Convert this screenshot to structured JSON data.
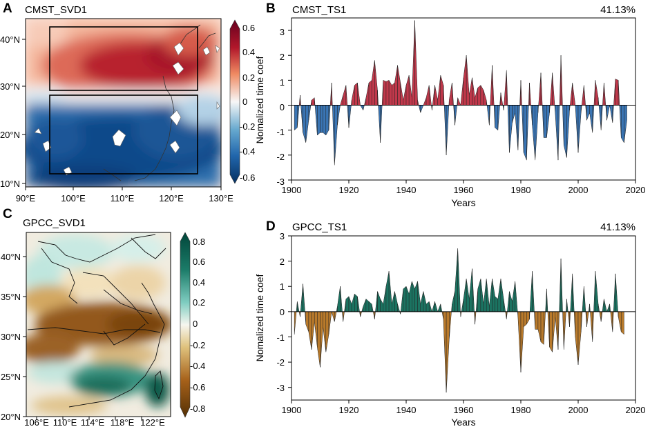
{
  "chart_data": [
    {
      "panel": "A",
      "type": "heatmap",
      "title": "CMST_SVD1",
      "x_ticks": [
        "90°E",
        "100°E",
        "110°E",
        "120°E",
        "130°E"
      ],
      "y_ticks": [
        "10°N",
        "20°N",
        "30°N",
        "40°N"
      ],
      "colorbar_ticks": [
        "0.6",
        "0.4",
        "0.2",
        "0",
        "-0.2",
        "-0.4",
        "-0.6"
      ],
      "colorbar_range": [
        -0.6,
        0.6
      ],
      "colors": {
        "positive": "#a3182a",
        "negative": "#134d8f",
        "zero": "#f5f5f5"
      }
    },
    {
      "panel": "B",
      "type": "area",
      "title": "CMST_TS1",
      "variance": "41.13%",
      "xlabel": "Years",
      "ylabel": "Nomalized time coef",
      "xlim": [
        1900,
        2020
      ],
      "ylim": [
        -3,
        3.5
      ],
      "x_ticks": [
        "1900",
        "1920",
        "1940",
        "1960",
        "1980",
        "2000",
        "2020"
      ],
      "y_ticks": [
        "3",
        "2",
        "1",
        "0",
        "-1",
        "-2",
        "-3"
      ],
      "x_start": 1901,
      "values": [
        -1.0,
        -0.9,
        0.4,
        -1.1,
        -1.5,
        -0.6,
        0.2,
        0.3,
        -1.2,
        -1.1,
        -1.1,
        -1.2,
        -1.0,
        0.9,
        -2.4,
        -0.8,
        0.0,
        0.4,
        0.8,
        -0.9,
        0.2,
        0.8,
        0.9,
        0.0,
        -0.2,
        0.3,
        0.9,
        1.0,
        1.8,
        0.6,
        -1.5,
        1.0,
        0.95,
        1.0,
        0.8,
        0.9,
        1.6,
        0.9,
        0.2,
        0.8,
        1.2,
        0.3,
        3.4,
        0.2,
        -0.3,
        0.0,
        0.3,
        0.8,
        -0.2,
        0.8,
        0.2,
        1.2,
        0.8,
        -2.0,
        0.2,
        0.9,
        -0.8,
        0.3,
        0.0,
        1.1,
        2.0,
        0.4,
        1.1,
        0.3,
        0.7,
        0.8,
        0.6,
        0.2,
        -0.8,
        1.6,
        -0.9,
        -1.0,
        0.5,
        -0.2,
        1.4,
        -1.9,
        -0.7,
        -0.3,
        -1.8,
        1.0,
        -1.9,
        -2.2,
        0.9,
        -0.8,
        -2.2,
        -0.3,
        1.3,
        -1.3,
        -1.3,
        -0.3,
        1.3,
        -0.3,
        -2.2,
        2.0,
        -1.6,
        -2.1,
        -0.2,
        0.9,
        0.0,
        -1.9,
        -0.3,
        0.8,
        -0.6,
        -0.3,
        -1.1,
        1.0,
        0.3,
        -1.0,
        0.9,
        -0.6,
        0.0,
        -0.7,
        1.05,
        1.0,
        -1.3,
        -1.5,
        -0.6
      ],
      "colors": {
        "positive": "#c1384b",
        "negative": "#3a75b4"
      }
    },
    {
      "panel": "C",
      "type": "heatmap",
      "title": "GPCC_SVD1",
      "x_ticks": [
        "106°E",
        "110°E",
        "114°E",
        "118°E",
        "122°E"
      ],
      "y_ticks": [
        "20°N",
        "25°N",
        "30°N",
        "35°N",
        "40°N"
      ],
      "colorbar_ticks": [
        "0.8",
        "0.6",
        "0.4",
        "0.2",
        "0",
        "-0.2",
        "-0.4",
        "-0.6",
        "-0.8"
      ],
      "colorbar_range": [
        -0.8,
        0.8
      ],
      "colors": {
        "positive": "#0c5e4c",
        "negative": "#7a4a0c",
        "zero": "#f7f7f0"
      }
    },
    {
      "panel": "D",
      "type": "area",
      "title": "GPCC_TS1",
      "variance": "41.13%",
      "xlabel": "Years",
      "ylabel": "Nomalized time coef",
      "xlim": [
        1900,
        2020
      ],
      "ylim": [
        -3.5,
        3
      ],
      "x_ticks": [
        "1900",
        "1920",
        "1940",
        "1960",
        "1980",
        "2000",
        "2020"
      ],
      "y_ticks": [
        "3",
        "2",
        "1",
        "0",
        "-1",
        "-2",
        "-3"
      ],
      "x_start": 1901,
      "values": [
        -0.9,
        0.4,
        -0.2,
        1.1,
        -0.5,
        -0.8,
        -1.5,
        -0.4,
        -1.4,
        -2.2,
        -0.6,
        -1.6,
        -0.9,
        0.0,
        -0.4,
        0.2,
        1.0,
        -0.4,
        0.5,
        0.6,
        0.3,
        0.7,
        0.6,
        -0.2,
        0.2,
        0.5,
        0.4,
        0.3,
        -0.3,
        0.8,
        0.5,
        0.3,
        1.0,
        1.6,
        0.3,
        0.8,
        0.3,
        -0.1,
        0.9,
        1.0,
        0.7,
        1.2,
        0.9,
        1.2,
        0.3,
        0.8,
        0.3,
        0.4,
        0.0,
        0.4,
        0.0,
        0.3,
        -0.3,
        -3.2,
        -1.1,
        0.3,
        0.8,
        2.5,
        -0.2,
        0.5,
        1.3,
        0.5,
        1.7,
        -0.5,
        0.9,
        1.3,
        0.3,
        1.3,
        0.2,
        1.3,
        0.6,
        0.5,
        1.3,
        0.5,
        -0.3,
        0.8,
        0.4,
        1.2,
        -0.2,
        -2.4,
        -0.6,
        -0.5,
        -0.3,
        1.6,
        -0.7,
        -0.7,
        -1.2,
        -1.3,
        0.9,
        -1.4,
        -1.6,
        -0.2,
        -1.5,
        2.1,
        -1.5,
        0.5,
        -0.6,
        1.5,
        -1.0,
        -2.1,
        -0.8,
        1.0,
        -0.6,
        0.3,
        -1.2,
        1.6,
        0.3,
        -0.4,
        0.5,
        0.0,
        0.3,
        -0.8,
        1.5,
        -0.2,
        -0.8,
        -0.9
      ],
      "colors": {
        "positive": "#1b7361",
        "negative": "#b97a2b"
      }
    }
  ]
}
